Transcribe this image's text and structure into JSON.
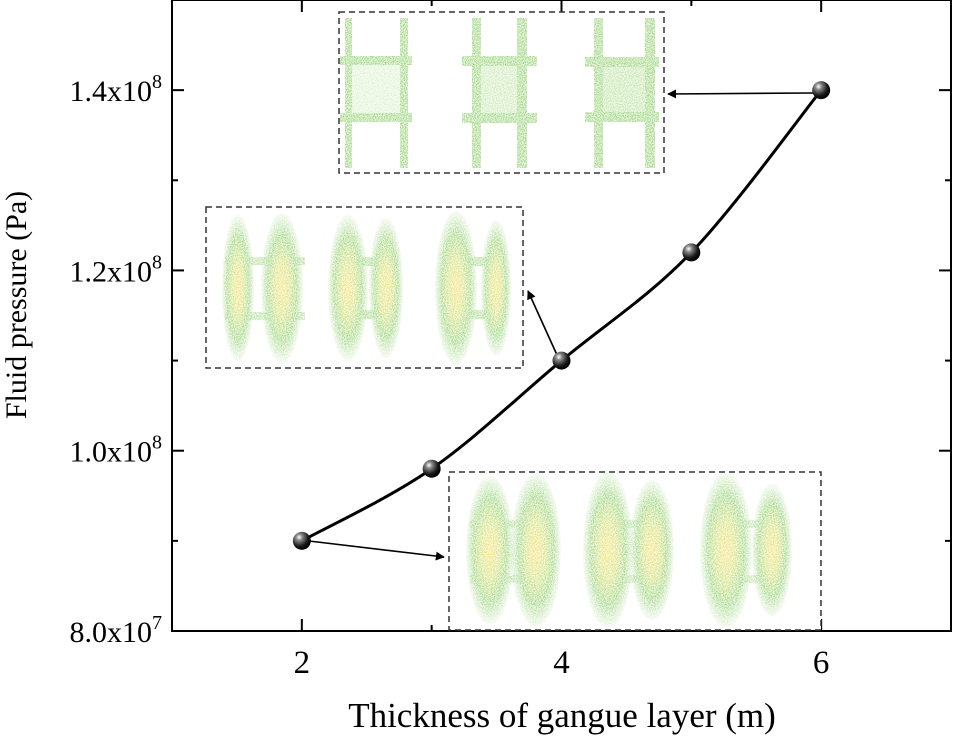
{
  "chart_data": {
    "type": "line",
    "xlabel": "Thickness of gangue layer (m)",
    "ylabel": "Fluid pressure (Pa)",
    "xlim": [
      1,
      7
    ],
    "ylim": [
      80000000,
      150000000
    ],
    "x_ticks": [
      {
        "value": 2,
        "label": "2"
      },
      {
        "value": 4,
        "label": "4"
      },
      {
        "value": 6,
        "label": "6"
      }
    ],
    "y_ticks": [
      {
        "value": 80000000,
        "mantissa": "8.0x10",
        "exp": "7"
      },
      {
        "value": 100000000,
        "mantissa": "1.0x10",
        "exp": "8"
      },
      {
        "value": 120000000,
        "mantissa": "1.2x10",
        "exp": "8"
      },
      {
        "value": 140000000,
        "mantissa": "1.4x10",
        "exp": "8"
      }
    ],
    "series": [
      {
        "x": [
          2,
          3,
          4,
          5,
          6
        ],
        "y": [
          90000000,
          98000000,
          110000000,
          122000000,
          140000000
        ],
        "color": "#000000"
      }
    ],
    "grid": false,
    "insets": [
      {
        "pattern": "thin-fractures",
        "points_to_x": 6
      },
      {
        "pattern": "medium-ellipses",
        "points_to_x": 4
      },
      {
        "pattern": "wide-ellipses",
        "points_to_x": 2
      }
    ],
    "colors": {
      "fracture_green": "#5cbf3a",
      "fracture_core": "#f0d02a",
      "line": "#000000"
    }
  }
}
